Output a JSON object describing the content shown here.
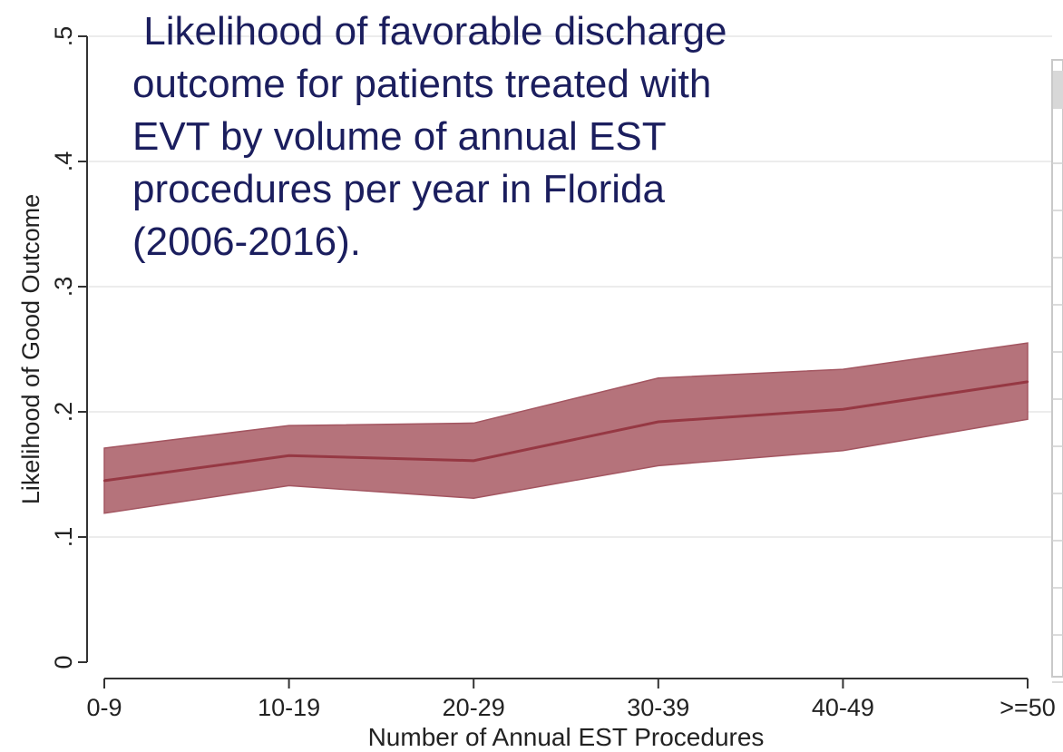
{
  "chart_data": {
    "type": "area",
    "title_lines": [
      " Likelihood of favorable discharge",
      "outcome for patients treated with",
      "EVT by volume of annual EST",
      "procedures per year in Florida",
      "(2006-2016)."
    ],
    "xlabel": "Number of Annual EST Procedures",
    "ylabel": "Likelihood of Good Outcome",
    "categories": [
      "0-9",
      "10-19",
      "20-29",
      "30-39",
      "40-49",
      ">=50"
    ],
    "ylim": [
      0,
      0.5
    ],
    "yticks": [
      0,
      0.1,
      0.2,
      0.3,
      0.4,
      0.5
    ],
    "ytick_labels": [
      "0",
      ".1",
      ".2",
      ".3",
      ".4",
      ".5"
    ],
    "grid": true,
    "series": [
      {
        "values": [
          0.145,
          0.165,
          0.161,
          0.192,
          0.202,
          0.224
        ],
        "lower": [
          0.119,
          0.141,
          0.131,
          0.157,
          0.169,
          0.194
        ],
        "upper": [
          0.171,
          0.189,
          0.191,
          0.227,
          0.234,
          0.255
        ]
      }
    ],
    "colors": {
      "band_fill": "#b5737b",
      "band_edge": "#a35661",
      "line": "#963843",
      "grid": "#ececec",
      "axis": "#333333",
      "title": "#1b1e5e"
    }
  }
}
